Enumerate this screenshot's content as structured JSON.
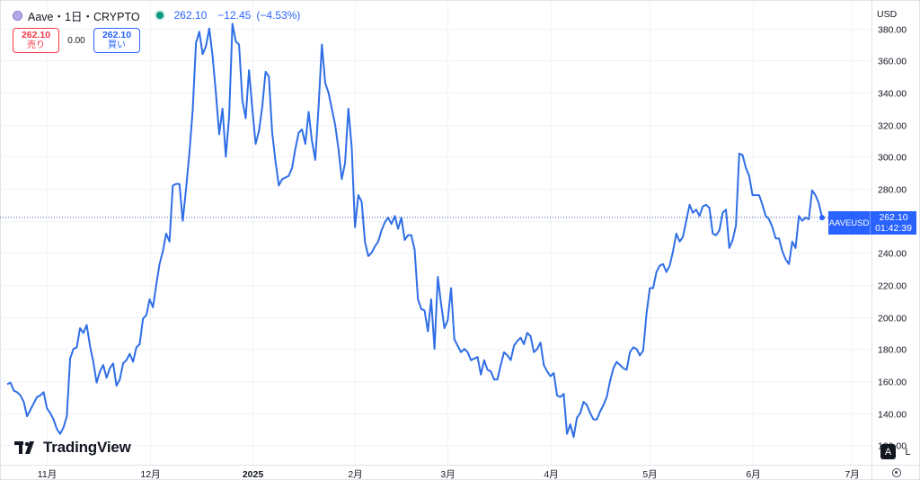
{
  "header": {
    "symbol": "Aave・1日・CRYPTO",
    "last_price": "262.10",
    "change": "−12.45",
    "change_pct": "(−4.53%)"
  },
  "trade": {
    "sell_price": "262.10",
    "sell_label": "売り",
    "spread": "0.00",
    "buy_price": "262.10",
    "buy_label": "買い"
  },
  "price_scale": {
    "currency": "USD",
    "tag_name": "AAVEUSD",
    "tag_price": "262.10",
    "tag_countdown": "01:42:39"
  },
  "controls": {
    "auto": "A",
    "log": "L"
  },
  "branding": {
    "logo_text": "TradingView"
  },
  "colors": {
    "line": "#2f6ee6",
    "accent": "#2962ff",
    "sell": "#f23645",
    "grid": "#f0f3fa"
  },
  "chart_data": {
    "type": "line",
    "series": [
      {
        "values": [
          158,
          159,
          154,
          153,
          151,
          147,
          138,
          142,
          146,
          150,
          151,
          153,
          143,
          140,
          136,
          130,
          127,
          131,
          138,
          174,
          180,
          181,
          193,
          190,
          195,
          182,
          172,
          159,
          166,
          170,
          162,
          168,
          171,
          157,
          161,
          171,
          173,
          177,
          172,
          181,
          183,
          199,
          201,
          211,
          206,
          220,
          233,
          241,
          252,
          247,
          282,
          283,
          283,
          260,
          280,
          302,
          329,
          371,
          378,
          364,
          369,
          380,
          363,
          340,
          314,
          330,
          300,
          325,
          383,
          372,
          370,
          335,
          324,
          354,
          330,
          308,
          316,
          331,
          353,
          350,
          315,
          297,
          282,
          286,
          287,
          288,
          293,
          305,
          315,
          317,
          308,
          328,
          310,
          298,
          331,
          370,
          346,
          340,
          330,
          320,
          305,
          286,
          296,
          330,
          306,
          256,
          276,
          272,
          247,
          238,
          240,
          244,
          247,
          254,
          259,
          262,
          258,
          263,
          255,
          262,
          248,
          251,
          251,
          242,
          211,
          205,
          204,
          191,
          211,
          180,
          225,
          208,
          193,
          198,
          218,
          186,
          182,
          178,
          180,
          178,
          173,
          174,
          175,
          164,
          173,
          167,
          166,
          161,
          161,
          170,
          178,
          176,
          173,
          182,
          185,
          187,
          183,
          190,
          188,
          178,
          180,
          184,
          170,
          166,
          163,
          165,
          151,
          150,
          152,
          127,
          133,
          125,
          137,
          140,
          147,
          145,
          140,
          136,
          136,
          141,
          145,
          150,
          160,
          168,
          172,
          170,
          168,
          167,
          178,
          181,
          180,
          176,
          179,
          202,
          218,
          218,
          228,
          232,
          233,
          228,
          232,
          241,
          252,
          247,
          250,
          260,
          270,
          265,
          267,
          263,
          269,
          270,
          268,
          252,
          251,
          254,
          265,
          267,
          243,
          248,
          257,
          302,
          301,
          293,
          288,
          276,
          276,
          276,
          270,
          263,
          261,
          256,
          249,
          249,
          241,
          236,
          233,
          247,
          243,
          263,
          260,
          262,
          261,
          279,
          276,
          271,
          262
        ]
      }
    ],
    "x_ticks": [
      "11月",
      "12月",
      "2025",
      "2月",
      "3月",
      "4月",
      "5月",
      "6月",
      "7月"
    ],
    "y_ticks": [
      "120.00",
      "140.00",
      "160.00",
      "180.00",
      "200.00",
      "220.00",
      "240.00",
      "260.00",
      "280.00",
      "300.00",
      "320.00",
      "340.00",
      "360.00",
      "380.00"
    ],
    "ylim": [
      110,
      395
    ],
    "grid": true,
    "last_value": 262.1
  }
}
